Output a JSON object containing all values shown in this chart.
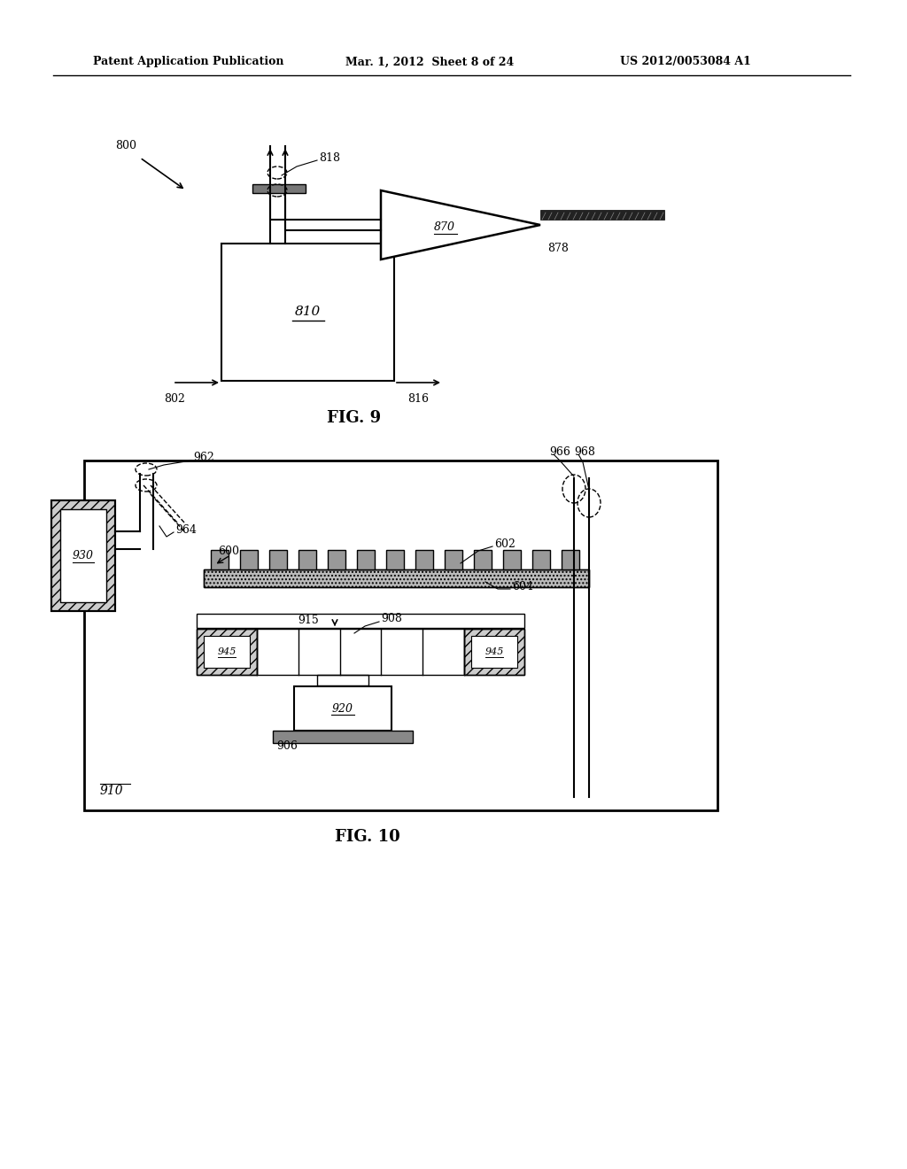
{
  "header_left": "Patent Application Publication",
  "header_mid": "Mar. 1, 2012  Sheet 8 of 24",
  "header_right": "US 2012/0053084 A1",
  "fig9_label": "FIG. 9",
  "fig10_label": "FIG. 10",
  "bg_color": "#ffffff",
  "line_color": "#000000",
  "label_800": "800",
  "label_810": "810",
  "label_816": "816",
  "label_802": "802",
  "label_818": "818",
  "label_870": "870",
  "label_878": "878",
  "label_930": "930",
  "label_910": "910",
  "label_920": "920",
  "label_906": "906",
  "label_908": "908",
  "label_915": "915",
  "label_945": "945",
  "label_962": "962",
  "label_964": "964",
  "label_966": "966",
  "label_968": "968",
  "label_600": "600",
  "label_602": "602",
  "label_604": "604"
}
